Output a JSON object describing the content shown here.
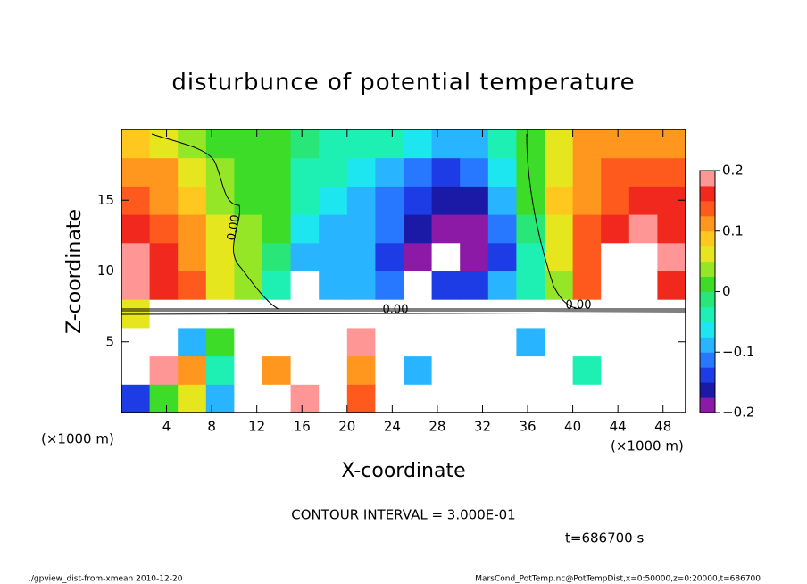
{
  "chart_data": {
    "type": "heatmap",
    "title": "disturbunce of potential temperature",
    "xlabel": "X-coordinate",
    "ylabel": "Z-coordinate",
    "x_unit_left": "(×1000 m)",
    "x_unit_right": "(×1000 m)",
    "contour_interval_note": "CONTOUR INTERVAL = 3.000E-01",
    "time_note": "t=686700 s",
    "footer_left": "./gpview_dist-from-xmean  2010-12-20",
    "footer_right": "MarsCond_PotTemp.nc@PotTempDist,x=0:50000,z=0:20000,t=686700",
    "annotations": [
      "0.00",
      "0.00",
      "0.00"
    ],
    "xlim": [
      0,
      50
    ],
    "ylim": [
      0,
      20
    ],
    "xticks": [
      4,
      8,
      12,
      16,
      20,
      24,
      28,
      32,
      36,
      40,
      44,
      48
    ],
    "yticks": [
      5,
      10,
      15
    ],
    "x": [
      1.25,
      3.75,
      6.25,
      8.75,
      11.25,
      13.75,
      16.25,
      18.75,
      21.25,
      23.75,
      26.25,
      28.75,
      31.25,
      33.75,
      36.25,
      38.75,
      41.25,
      43.75,
      46.25,
      48.75
    ],
    "y": [
      1,
      3,
      5,
      7,
      9,
      11,
      13,
      15,
      17,
      19
    ],
    "values": [
      [
        -0.15,
        0.0,
        0.05,
        -0.1,
        0.3,
        0.3,
        0.18,
        0.3,
        0.15,
        0.3,
        0.3,
        0.3,
        0.3,
        0.3,
        0.3,
        0.3,
        0.3,
        0.3,
        0.3,
        0.3
      ],
      [
        0.3,
        0.18,
        0.1,
        -0.05,
        0.3,
        0.1,
        0.3,
        0.3,
        0.1,
        0.3,
        -0.1,
        0.3,
        0.3,
        0.3,
        0.3,
        0.3,
        -0.05,
        0.3,
        0.3,
        0.3
      ],
      [
        0.3,
        0.3,
        -0.1,
        0.0,
        0.3,
        0.3,
        0.3,
        0.3,
        0.18,
        0.3,
        0.3,
        0.3,
        0.3,
        0.3,
        -0.1,
        0.3,
        0.3,
        0.3,
        0.3,
        0.3
      ],
      [
        0.05,
        0.3,
        0.3,
        0.3,
        0.3,
        0.3,
        0.3,
        0.3,
        0.3,
        0.3,
        0.3,
        0.3,
        0.3,
        0.3,
        0.3,
        0.3,
        0.3,
        0.3,
        0.3,
        0.3
      ],
      [
        0.19,
        0.17,
        0.13,
        0.07,
        0.03,
        -0.04,
        -0.25,
        -0.1,
        -0.08,
        -0.12,
        -0.25,
        -0.15,
        -0.14,
        -0.1,
        -0.04,
        0.03,
        0.15,
        0.25,
        0.25,
        0.17
      ],
      [
        0.18,
        0.16,
        0.12,
        0.06,
        0.03,
        -0.02,
        -0.08,
        -0.1,
        -0.1,
        -0.13,
        -0.19,
        -0.21,
        -0.2,
        -0.14,
        -0.04,
        0.05,
        0.14,
        0.25,
        0.25,
        0.18
      ],
      [
        0.16,
        0.14,
        0.1,
        0.05,
        0.03,
        0.0,
        -0.06,
        -0.09,
        -0.1,
        -0.12,
        -0.17,
        -0.2,
        -0.19,
        -0.12,
        -0.02,
        0.07,
        0.13,
        0.17,
        0.2,
        0.17
      ],
      [
        0.14,
        0.12,
        0.08,
        0.04,
        0.02,
        0.0,
        -0.04,
        -0.07,
        -0.09,
        -0.11,
        -0.15,
        -0.17,
        -0.16,
        -0.1,
        0.0,
        0.08,
        0.12,
        0.15,
        0.17,
        0.16
      ],
      [
        0.12,
        0.1,
        0.06,
        0.03,
        0.02,
        0.0,
        -0.03,
        -0.05,
        -0.07,
        -0.09,
        -0.12,
        -0.13,
        -0.12,
        -0.07,
        0.0,
        0.07,
        0.11,
        0.13,
        0.14,
        0.14
      ],
      [
        0.08,
        0.06,
        0.03,
        0.02,
        0.01,
        0.0,
        -0.02,
        -0.03,
        -0.04,
        -0.05,
        -0.07,
        -0.09,
        -0.08,
        -0.05,
        0.0,
        0.06,
        0.1,
        0.1,
        0.12,
        0.12
      ]
    ],
    "clim": [
      -0.2,
      0.2
    ],
    "cticks": [
      {
        "value": -0.2,
        "label": "−0.2"
      },
      {
        "value": -0.1,
        "label": "−0.1"
      },
      0,
      0.1,
      0.2
    ],
    "colors": [
      "#8c1aa6",
      "#1a1aa6",
      "#1e3ce6",
      "#2878ff",
      "#28b4ff",
      "#1ee6f0",
      "#1ef0b4",
      "#28e678",
      "#3cdc28",
      "#96e628",
      "#e6e61e",
      "#ffc81e",
      "#ff961e",
      "#ff5a1e",
      "#f0281e",
      "#ff9696"
    ],
    "out_of_range_color": "#ffffff"
  }
}
